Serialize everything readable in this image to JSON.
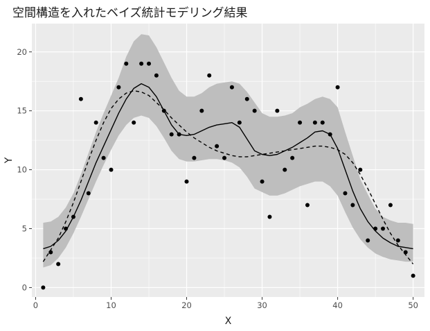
{
  "chart_data": {
    "type": "scatter",
    "title": "空間構造を入れたベイズ統計モデリング結果",
    "xlabel": "X",
    "ylabel": "Y",
    "xlim": [
      -0.5,
      51.5
    ],
    "ylim": [
      -0.8,
      22.4
    ],
    "x_ticks": [
      0,
      10,
      20,
      30,
      40,
      50
    ],
    "y_ticks": [
      0,
      5,
      10,
      15,
      20
    ],
    "grid": true,
    "legend": "none",
    "colors": {
      "panel": "#ebebeb",
      "grid": "#ffffff",
      "ribbon": "#bebebe",
      "line": "#000000",
      "points": "#000000"
    },
    "points": {
      "x": [
        1,
        2,
        3,
        4,
        5,
        6,
        7,
        8,
        9,
        10,
        11,
        12,
        13,
        14,
        15,
        16,
        17,
        18,
        19,
        20,
        21,
        22,
        23,
        24,
        25,
        26,
        27,
        28,
        29,
        30,
        31,
        32,
        33,
        34,
        35,
        36,
        37,
        38,
        39,
        40,
        41,
        42,
        43,
        44,
        45,
        46,
        47,
        48,
        49,
        50
      ],
      "y": [
        0,
        3,
        2,
        5,
        6,
        16,
        8,
        14,
        11,
        10,
        17,
        19,
        14,
        19,
        19,
        18,
        15,
        13,
        13,
        9,
        11,
        15,
        18,
        12,
        11,
        17,
        14,
        16,
        15,
        9,
        6,
        15,
        10,
        11,
        14,
        7,
        14,
        14,
        13,
        17,
        8,
        7,
        10,
        4,
        5,
        5,
        7,
        4,
        3,
        1
      ]
    },
    "series": [
      {
        "style": "solid",
        "x": [
          1,
          2,
          3,
          4,
          5,
          6,
          7,
          8,
          9,
          10,
          11,
          12,
          13,
          14,
          15,
          16,
          17,
          18,
          19,
          20,
          21,
          22,
          23,
          24,
          25,
          26,
          27,
          28,
          29,
          30,
          31,
          32,
          33,
          34,
          35,
          36,
          37,
          38,
          39,
          40,
          41,
          42,
          43,
          44,
          45,
          46,
          47,
          48,
          49,
          50
        ],
        "y": [
          3.3,
          3.5,
          4.0,
          4.8,
          6.0,
          7.4,
          9.0,
          10.6,
          12.0,
          13.4,
          14.8,
          16.0,
          16.9,
          17.3,
          17.0,
          16.2,
          15.0,
          13.8,
          13.0,
          12.9,
          13.0,
          13.3,
          13.6,
          13.8,
          13.9,
          14.0,
          13.6,
          12.6,
          11.6,
          11.3,
          11.2,
          11.3,
          11.6,
          11.9,
          12.3,
          12.7,
          13.2,
          13.3,
          13.0,
          11.8,
          10.0,
          8.2,
          6.7,
          5.6,
          4.8,
          4.2,
          3.8,
          3.5,
          3.4,
          3.3
        ]
      },
      {
        "style": "dashed",
        "x": [
          1,
          2,
          3,
          4,
          5,
          6,
          7,
          8,
          9,
          10,
          11,
          12,
          13,
          14,
          15,
          16,
          17,
          18,
          19,
          20,
          21,
          22,
          23,
          24,
          25,
          26,
          27,
          28,
          29,
          30,
          31,
          32,
          33,
          34,
          35,
          36,
          37,
          38,
          39,
          40,
          41,
          42,
          43,
          44,
          45,
          46,
          47,
          48,
          49,
          50
        ],
        "y": [
          2.2,
          3.2,
          4.2,
          5.6,
          7.2,
          9.0,
          10.8,
          12.5,
          14.0,
          15.2,
          16.0,
          16.5,
          16.7,
          16.6,
          16.3,
          15.7,
          15.1,
          14.4,
          13.8,
          13.2,
          12.7,
          12.3,
          11.9,
          11.6,
          11.4,
          11.2,
          11.1,
          11.1,
          11.2,
          11.3,
          11.4,
          11.5,
          11.6,
          11.7,
          11.8,
          11.9,
          12.0,
          12.0,
          11.9,
          11.7,
          11.3,
          10.6,
          9.6,
          8.4,
          7.1,
          5.8,
          4.6,
          3.6,
          2.8,
          2.0
        ]
      }
    ],
    "ribbon": {
      "x": [
        1,
        2,
        3,
        4,
        5,
        6,
        7,
        8,
        9,
        10,
        11,
        12,
        13,
        14,
        15,
        16,
        17,
        18,
        19,
        20,
        21,
        22,
        23,
        24,
        25,
        26,
        27,
        28,
        29,
        30,
        31,
        32,
        33,
        34,
        35,
        36,
        37,
        38,
        39,
        40,
        41,
        42,
        43,
        44,
        45,
        46,
        47,
        48,
        49,
        50
      ],
      "lower": [
        1.7,
        1.9,
        2.5,
        3.4,
        4.6,
        6.0,
        7.5,
        9.0,
        10.4,
        11.7,
        12.9,
        13.8,
        14.4,
        14.6,
        14.4,
        13.7,
        12.7,
        11.6,
        10.9,
        10.7,
        10.7,
        10.8,
        10.9,
        10.9,
        10.8,
        10.6,
        10.2,
        9.4,
        8.4,
        8.1,
        7.8,
        7.8,
        8.0,
        8.3,
        8.6,
        8.8,
        9.0,
        9.0,
        8.6,
        7.8,
        6.4,
        5.1,
        4.1,
        3.4,
        2.9,
        2.6,
        2.4,
        2.3,
        2.2,
        2.2
      ],
      "upper": [
        5.5,
        5.6,
        6.0,
        6.8,
        8.0,
        9.6,
        11.4,
        13.2,
        14.8,
        16.3,
        17.8,
        19.6,
        20.9,
        21.5,
        21.4,
        20.4,
        19.1,
        17.8,
        16.7,
        16.2,
        16.2,
        16.5,
        17.0,
        17.3,
        17.4,
        17.5,
        17.3,
        16.6,
        15.7,
        14.8,
        14.5,
        14.5,
        14.6,
        14.8,
        15.3,
        15.6,
        16.0,
        16.2,
        16.0,
        15.3,
        13.2,
        11.2,
        9.2,
        7.9,
        6.7,
        6.0,
        5.7,
        5.5,
        5.5,
        5.4
      ]
    }
  }
}
